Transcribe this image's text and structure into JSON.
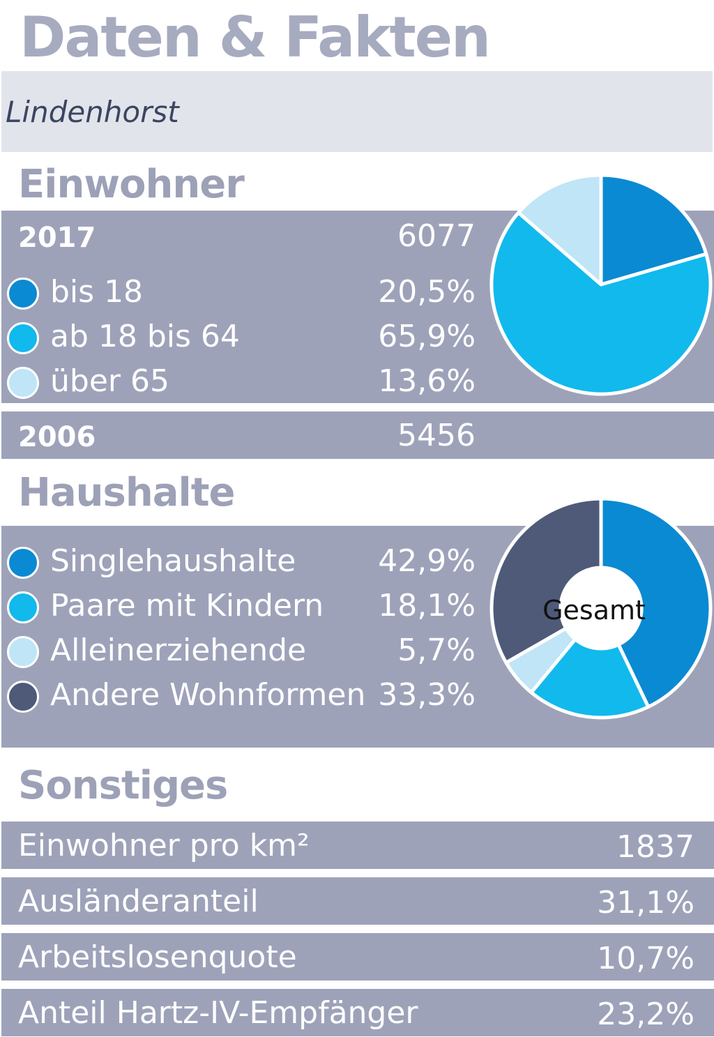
{
  "header": {
    "title": "Daten & Fakten",
    "location": "Lindenhorst"
  },
  "colors": {
    "band": "#9ea2b9",
    "heading": "#9da1b7",
    "dark_blue": "#0a8ad2",
    "mid_blue": "#12b9ec",
    "light_blue": "#bfe5f7",
    "slate": "#4e5a78"
  },
  "einwohner": {
    "heading": "Einwohner",
    "year_2017": {
      "label": "2017",
      "value": "6077"
    },
    "year_2006": {
      "label": "2006",
      "value": "5456"
    }
  },
  "haushalte": {
    "heading": "Haushalte",
    "center_label": "Gesamt"
  },
  "sonstiges": {
    "heading": "Sonstiges",
    "rows": [
      {
        "label": "Einwohner pro km²",
        "value": "1837"
      },
      {
        "label": "Ausländeranteil",
        "value": "31,1%"
      },
      {
        "label": "Arbeitslosenquote",
        "value": "10,7%"
      },
      {
        "label": "Anteil Hartz-IV-Empfänger",
        "value": "23,2%"
      }
    ]
  },
  "chart_data": [
    {
      "type": "pie",
      "title": "Einwohner",
      "categories": [
        "bis 18",
        "ab 18 bis 64",
        "über 65"
      ],
      "values": [
        20.5,
        65.9,
        13.6
      ],
      "value_labels": [
        "20,5%",
        "65,9%",
        "13,6%"
      ],
      "colors": [
        "#0a8ad2",
        "#12b9ec",
        "#bfe5f7"
      ]
    },
    {
      "type": "pie",
      "title": "Haushalte",
      "categories": [
        "Singlehaushalte",
        "Paare mit Kindern",
        "Alleinerziehende",
        "Andere Wohnformen"
      ],
      "values": [
        42.9,
        18.1,
        5.7,
        33.3
      ],
      "value_labels": [
        "42,9%",
        "18,1%",
        "5,7%",
        "33,3%"
      ],
      "colors": [
        "#0a8ad2",
        "#12b9ec",
        "#bfe5f7",
        "#4e5a78"
      ]
    }
  ]
}
